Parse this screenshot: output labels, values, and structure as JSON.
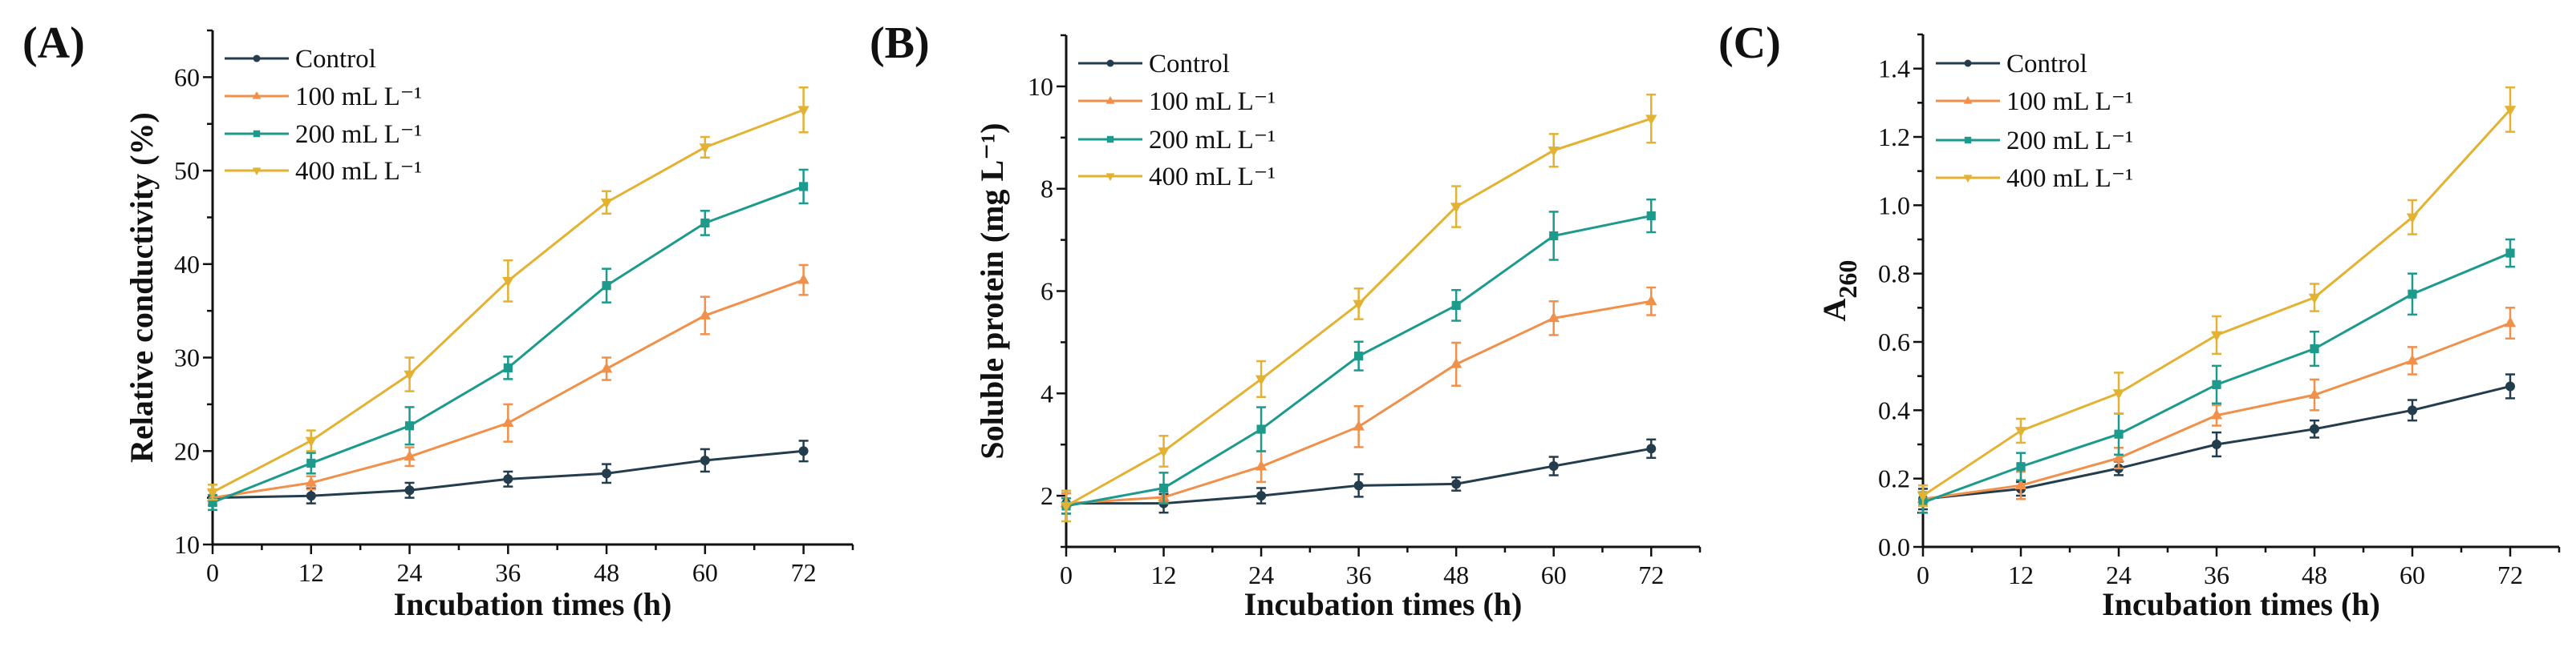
{
  "colors": {
    "Control": "#233d4d",
    "100": "#f0904a",
    "200": "#1c9a8c",
    "400": "#e3b233"
  },
  "chart_data": [
    {
      "type": "line",
      "panel_label": "(A)",
      "xlabel": "Incubation times (h)",
      "ylabel": "Relative conductivity (%)",
      "ylabel_sub": "",
      "x": [
        0,
        12,
        24,
        36,
        48,
        60,
        72
      ],
      "xticks": [
        "0",
        "12",
        "24",
        "36",
        "48",
        "60",
        "72"
      ],
      "xlim": [
        0,
        78
      ],
      "ylim": [
        10,
        65
      ],
      "yticks": [
        "10",
        "20",
        "30",
        "40",
        "50",
        "60"
      ],
      "ytick_values": [
        10,
        20,
        30,
        40,
        50,
        60
      ],
      "legend_position": "top-left",
      "series": [
        {
          "name": "Control",
          "key": "Control",
          "marker": "circle",
          "values": [
            15,
            15.2,
            15.8,
            17,
            17.6,
            19,
            20
          ],
          "err": [
            0.8,
            0.8,
            0.8,
            0.8,
            1,
            1.2,
            1.1
          ]
        },
        {
          "name": "100 mL L⁻¹",
          "key": "100",
          "marker": "triangle-up",
          "values": [
            15,
            16.6,
            19.4,
            23,
            28.8,
            34.5,
            38.3
          ],
          "err": [
            0.8,
            0.7,
            1,
            2,
            1.2,
            2,
            1.6
          ]
        },
        {
          "name": "200 mL L⁻¹",
          "key": "200",
          "marker": "square",
          "values": [
            14.5,
            18.7,
            22.7,
            28.9,
            37.7,
            44.4,
            48.3
          ],
          "err": [
            0.8,
            1.1,
            2,
            1.2,
            1.8,
            1.3,
            1.8
          ]
        },
        {
          "name": "400 mL L⁻¹",
          "key": "400",
          "marker": "triangle-down",
          "values": [
            15.6,
            21.1,
            28.2,
            38.2,
            46.6,
            52.5,
            56.5
          ],
          "err": [
            0.8,
            1.1,
            1.8,
            2.2,
            1.2,
            1.1,
            2.4
          ]
        }
      ]
    },
    {
      "type": "line",
      "panel_label": "(B)",
      "xlabel": "Incubation times (h)",
      "ylabel": "Soluble protein (mg L⁻¹)",
      "ylabel_sub": "",
      "x": [
        0,
        12,
        24,
        36,
        48,
        60,
        72
      ],
      "xticks": [
        "0",
        "12",
        "24",
        "36",
        "48",
        "60",
        "72"
      ],
      "xlim": [
        0,
        78
      ],
      "ylim": [
        1,
        11
      ],
      "yticks": [
        "2",
        "4",
        "6",
        "8",
        "10"
      ],
      "ytick_values": [
        2,
        4,
        6,
        8,
        10
      ],
      "legend_position": "top-left",
      "series": [
        {
          "name": "Control",
          "key": "Control",
          "marker": "circle",
          "values": [
            1.85,
            1.85,
            2.0,
            2.2,
            2.23,
            2.58,
            2.92
          ],
          "err": [
            0.2,
            0.18,
            0.15,
            0.22,
            0.13,
            0.18,
            0.18
          ]
        },
        {
          "name": "100 mL L⁻¹",
          "key": "100",
          "marker": "triangle-up",
          "values": [
            1.85,
            1.97,
            2.57,
            3.35,
            4.57,
            5.47,
            5.8
          ],
          "err": [
            0.2,
            0.1,
            0.3,
            0.4,
            0.42,
            0.33,
            0.27
          ]
        },
        {
          "name": "200 mL L⁻¹",
          "key": "200",
          "marker": "square",
          "values": [
            1.8,
            2.15,
            3.3,
            4.73,
            5.72,
            7.08,
            7.47
          ],
          "err": [
            0.15,
            0.3,
            0.43,
            0.28,
            0.3,
            0.47,
            0.32
          ]
        },
        {
          "name": "400 mL L⁻¹",
          "key": "400",
          "marker": "triangle-down",
          "values": [
            1.8,
            2.87,
            4.28,
            5.75,
            7.65,
            8.75,
            9.37
          ],
          "err": [
            0.3,
            0.3,
            0.35,
            0.3,
            0.4,
            0.32,
            0.47
          ]
        }
      ]
    },
    {
      "type": "line",
      "panel_label": "(C)",
      "xlabel": "Incubation times (h)",
      "ylabel": "A",
      "ylabel_sub": "260",
      "x": [
        0,
        12,
        24,
        36,
        48,
        60,
        72
      ],
      "xticks": [
        "0",
        "12",
        "24",
        "36",
        "48",
        "60",
        "72"
      ],
      "xlim": [
        0,
        78
      ],
      "ylim": [
        0,
        1.5
      ],
      "yticks": [
        "0.0",
        "0.2",
        "0.4",
        "0.6",
        "0.8",
        "1.0",
        "1.2",
        "1.4"
      ],
      "ytick_values": [
        0,
        0.2,
        0.4,
        0.6,
        0.8,
        1.0,
        1.2,
        1.4
      ],
      "legend_position": "top-left",
      "series": [
        {
          "name": "Control",
          "key": "Control",
          "marker": "circle",
          "values": [
            0.14,
            0.17,
            0.23,
            0.3,
            0.345,
            0.4,
            0.47
          ],
          "err": [
            0.03,
            0.02,
            0.02,
            0.035,
            0.025,
            0.03,
            0.035
          ]
        },
        {
          "name": "100 mL L⁻¹",
          "key": "100",
          "marker": "triangle-up",
          "values": [
            0.14,
            0.18,
            0.26,
            0.385,
            0.445,
            0.545,
            0.655
          ],
          "err": [
            0.04,
            0.04,
            0.03,
            0.03,
            0.045,
            0.04,
            0.045
          ]
        },
        {
          "name": "200 mL L⁻¹",
          "key": "200",
          "marker": "square",
          "values": [
            0.13,
            0.235,
            0.33,
            0.475,
            0.58,
            0.74,
            0.86
          ],
          "err": [
            0.03,
            0.04,
            0.06,
            0.055,
            0.05,
            0.06,
            0.04
          ]
        },
        {
          "name": "400 mL L⁻¹",
          "key": "400",
          "marker": "triangle-down",
          "values": [
            0.15,
            0.34,
            0.45,
            0.62,
            0.73,
            0.965,
            1.28
          ],
          "err": [
            0.03,
            0.035,
            0.06,
            0.055,
            0.04,
            0.05,
            0.065
          ]
        }
      ]
    }
  ]
}
